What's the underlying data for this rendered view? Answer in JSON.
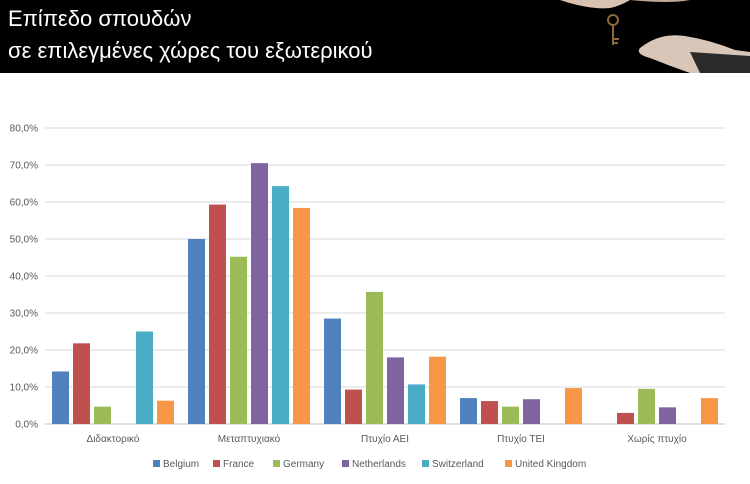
{
  "header": {
    "title_line1": "Επίπεδο σπουδών",
    "title_line2": "σε επιλεγμένες χώρες του εξωτερικού"
  },
  "chart_data": {
    "type": "bar",
    "categories": [
      "Διδακτορικό",
      "Μεταπτυχιακό",
      "Πτυχίο ΑΕΙ",
      "Πτυχίο ΤΕΙ",
      "Χωρίς πτυχίο"
    ],
    "series": [
      {
        "name": "Belgium",
        "color": "#4F81BD",
        "values": [
          14.2,
          50.0,
          28.5,
          7.0,
          null
        ]
      },
      {
        "name": "France",
        "color": "#C0504D",
        "values": [
          21.8,
          59.3,
          9.3,
          6.2,
          3.0
        ]
      },
      {
        "name": "Germany",
        "color": "#9BBB59",
        "values": [
          4.7,
          45.2,
          35.7,
          4.7,
          9.5
        ]
      },
      {
        "name": "Netherlands",
        "color": "#8064A2",
        "values": [
          null,
          70.5,
          18.0,
          6.7,
          4.5
        ]
      },
      {
        "name": "Switzerland",
        "color": "#4BACC6",
        "values": [
          25.0,
          64.3,
          10.7,
          null,
          null
        ]
      },
      {
        "name": "United Kingdom",
        "color": "#F79646",
        "values": [
          6.3,
          58.4,
          18.2,
          9.7,
          7.0
        ]
      }
    ],
    "yticks": [
      "0,0%",
      "10,0%",
      "20,0%",
      "30,0%",
      "40,0%",
      "50,0%",
      "60,0%",
      "70,0%",
      "80,0%"
    ],
    "ylim": [
      0,
      80
    ],
    "grid": true,
    "legend_position": "bottom"
  }
}
